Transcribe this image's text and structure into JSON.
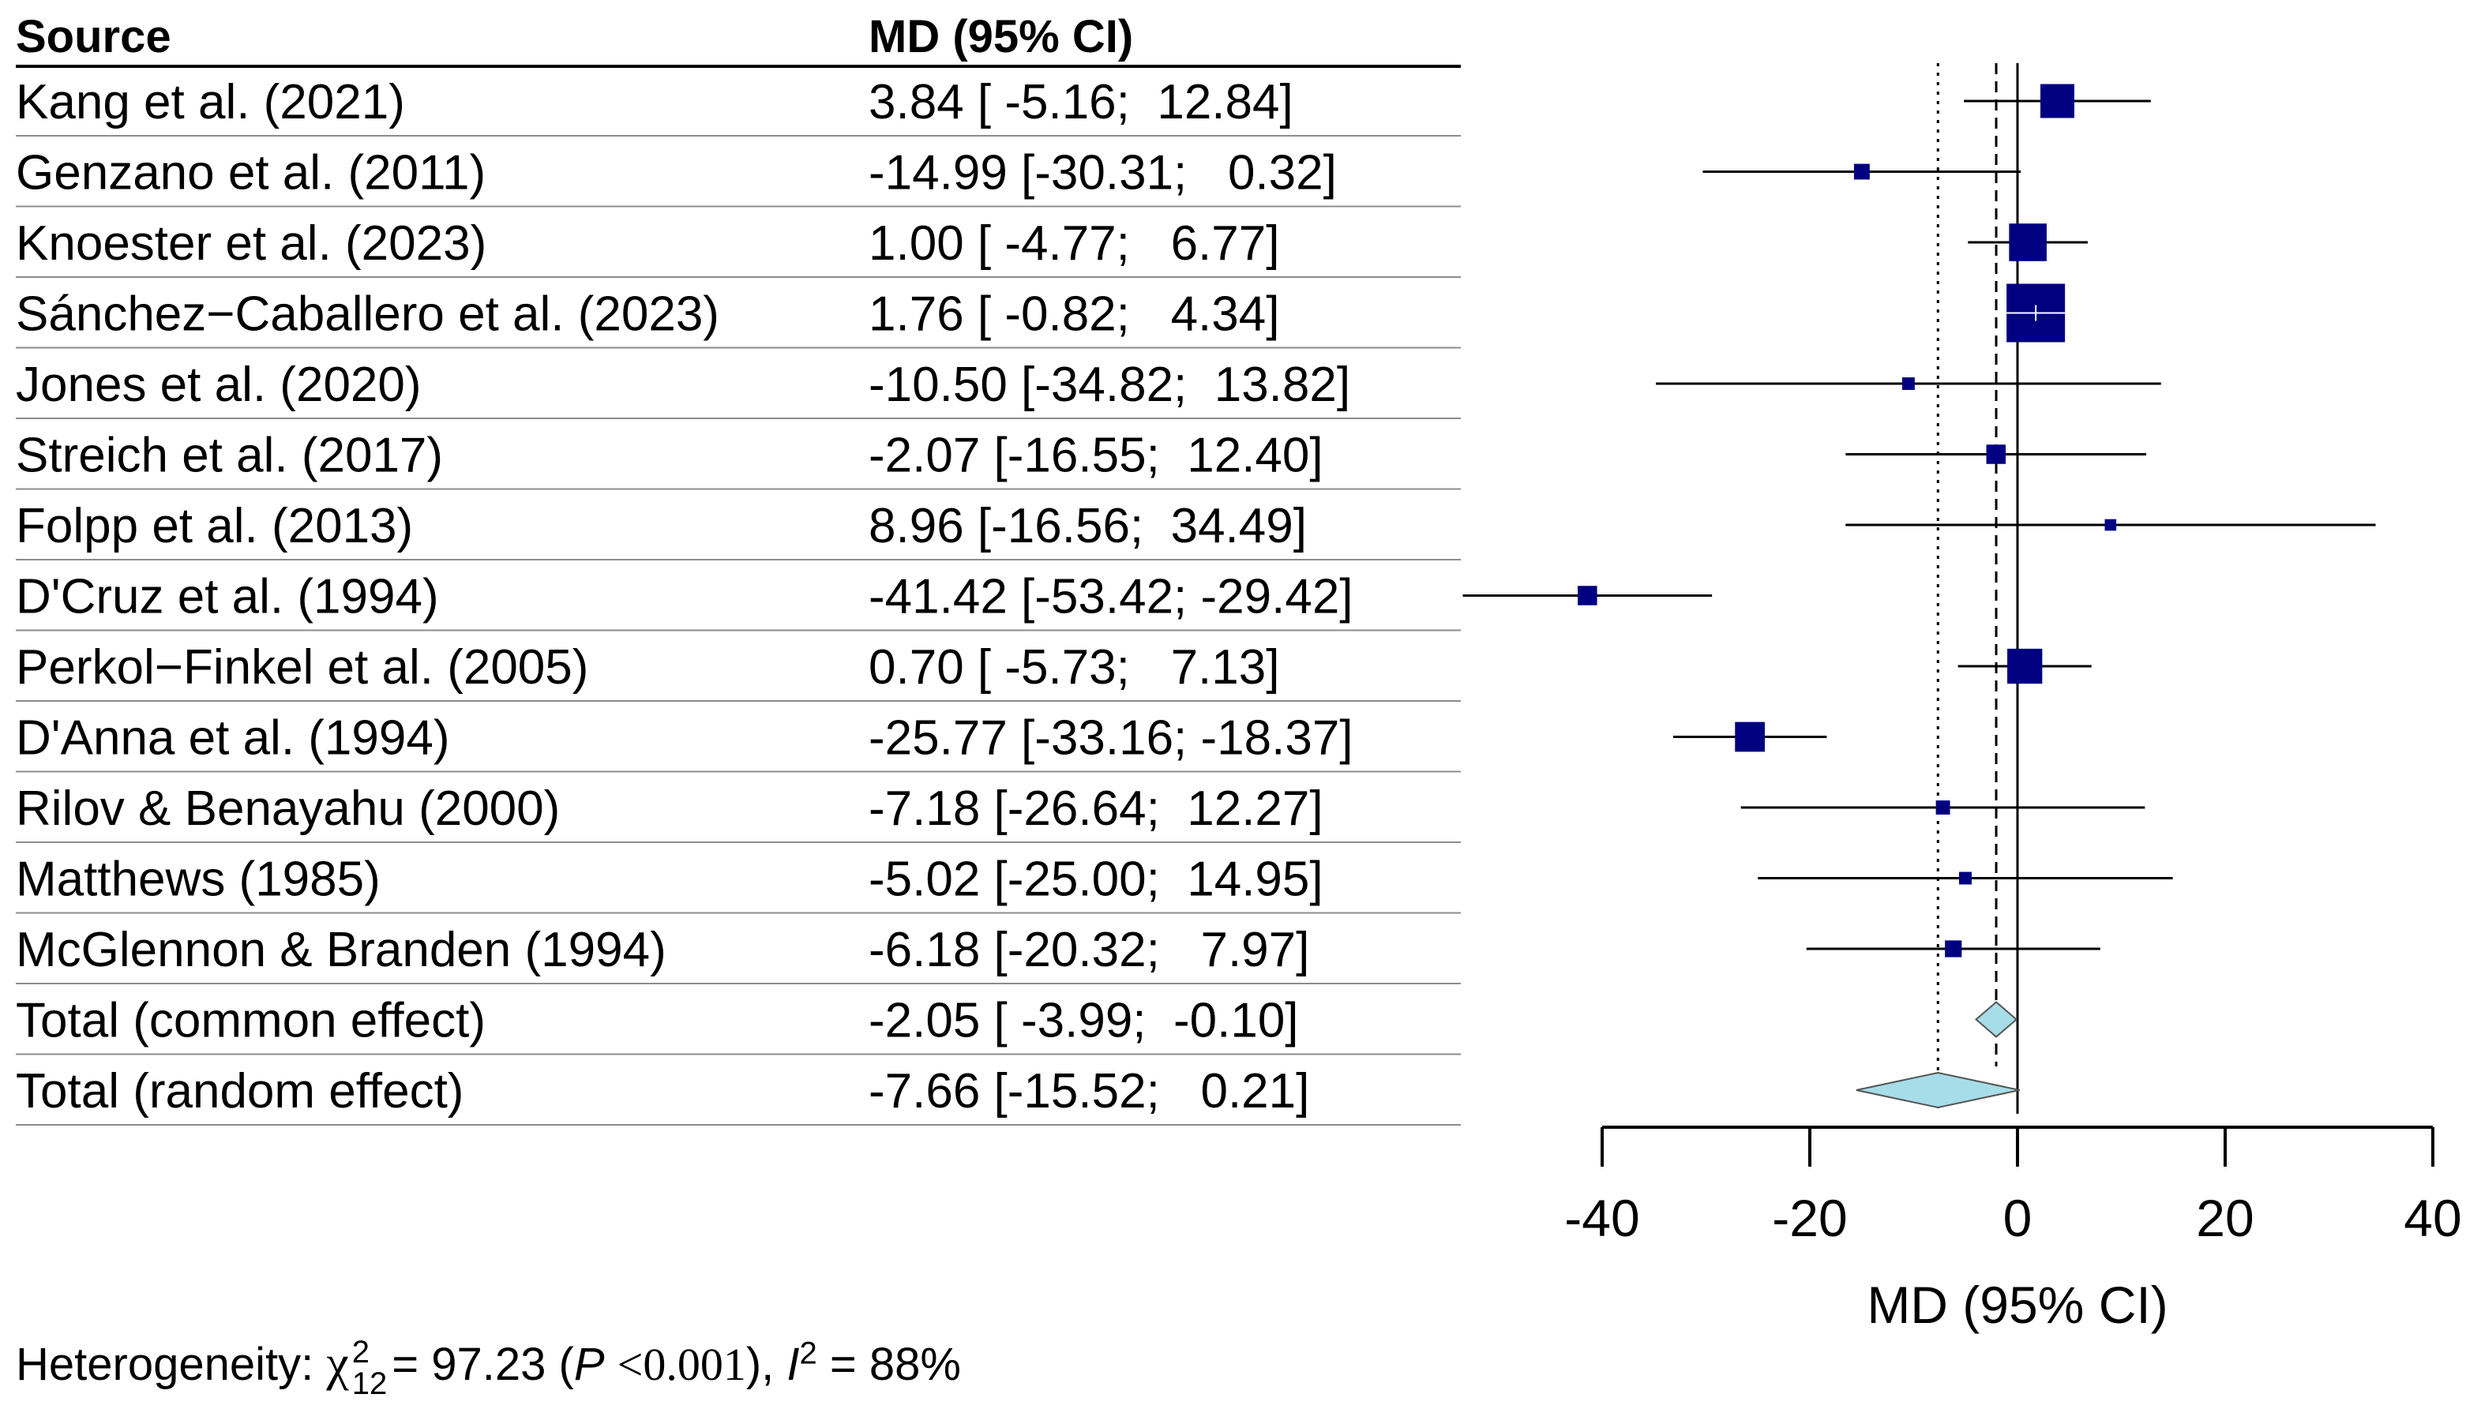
{
  "chart_data": {
    "type": "forest",
    "columns": {
      "source": "Source",
      "estimate": "MD (95% CI)"
    },
    "studies": [
      {
        "source": "Kang et al. (2021)",
        "md": 3.84,
        "lower": -5.16,
        "upper": 12.84,
        "ci_text": "3.84 [ -5.16;  12.84]",
        "weight": 0.53
      },
      {
        "source": "Genzano et al. (2011)",
        "md": -14.99,
        "lower": -30.31,
        "upper": 0.32,
        "ci_text": "-14.99 [-30.31;   0.32]",
        "weight": 0.18
      },
      {
        "source": "Knoester et al. (2023)",
        "md": 1.0,
        "lower": -4.77,
        "upper": 6.77,
        "ci_text": "1.00 [ -4.77;   6.77]",
        "weight": 0.6
      },
      {
        "source": "Sánchez−Caballero et al. (2023)",
        "md": 1.76,
        "lower": -0.82,
        "upper": 4.34,
        "ci_text": "1.76 [ -0.82;   4.34]",
        "weight": 1.0
      },
      {
        "source": "Jones et al. (2020)",
        "md": -10.5,
        "lower": -34.82,
        "upper": 13.82,
        "ci_text": "-10.50 [-34.82;  13.82]",
        "weight": 0.12
      },
      {
        "source": "Streich et al. (2017)",
        "md": -2.07,
        "lower": -16.55,
        "upper": 12.4,
        "ci_text": "-2.07 [-16.55;  12.40]",
        "weight": 0.25
      },
      {
        "source": "Folpp et al. (2013)",
        "md": 8.96,
        "lower": -16.56,
        "upper": 34.49,
        "ci_text": "8.96 [-16.56;  34.49]",
        "weight": 0.1
      },
      {
        "source": "D'Cruz et al. (1994)",
        "md": -41.42,
        "lower": -53.42,
        "upper": -29.42,
        "ci_text": "-41.42 [-53.42; -29.42]",
        "weight": 0.25
      },
      {
        "source": "Perkol−Finkel et al. (2005)",
        "md": 0.7,
        "lower": -5.73,
        "upper": 7.13,
        "ci_text": "0.70 [ -5.73;   7.13]",
        "weight": 0.55
      },
      {
        "source": "D'Anna et al. (1994)",
        "md": -25.77,
        "lower": -33.16,
        "upper": -18.37,
        "ci_text": "-25.77 [-33.16; -18.37]",
        "weight": 0.45
      },
      {
        "source": "Rilov & Benayahu (2000)",
        "md": -7.18,
        "lower": -26.64,
        "upper": 12.27,
        "ci_text": "-7.18 [-26.64;  12.27]",
        "weight": 0.15
      },
      {
        "source": "Matthews (1985)",
        "md": -5.02,
        "lower": -25.0,
        "upper": 14.95,
        "ci_text": "-5.02 [-25.00;  14.95]",
        "weight": 0.12
      },
      {
        "source": "McGlennon & Branden (1994)",
        "md": -6.18,
        "lower": -20.32,
        "upper": 7.97,
        "ci_text": "-6.18 [-20.32;   7.97]",
        "weight": 0.2
      }
    ],
    "totals": [
      {
        "source": "Total (common effect)",
        "md": -2.05,
        "lower": -3.99,
        "upper": -0.1,
        "ci_text": "-2.05 [ -3.99;  -0.10]"
      },
      {
        "source": "Total (random effect)",
        "md": -7.66,
        "lower": -15.52,
        "upper": 0.21,
        "ci_text": "-7.66 [-15.52;   0.21]"
      }
    ],
    "xlabel": "MD (95% CI)",
    "xlim": [
      -40,
      40
    ],
    "xticks": [
      -40,
      -20,
      0,
      20,
      40
    ],
    "reference_line": 0,
    "colors": {
      "box": "#000080",
      "diamond": "#a6dde8",
      "line": "#000000",
      "row_divider": "#8c8c8c"
    }
  },
  "heterogeneity": {
    "label": "Heterogeneity:",
    "chi_symbol": "χ",
    "chi_sup": "2",
    "chi_sub": "12",
    "chi_value": "= 97.23 (",
    "p_symbol": "P",
    "p_value": "<0.001",
    "after_p": "),",
    "i_symbol": "I",
    "i_sup": "2",
    "i_value": "= 88%"
  }
}
